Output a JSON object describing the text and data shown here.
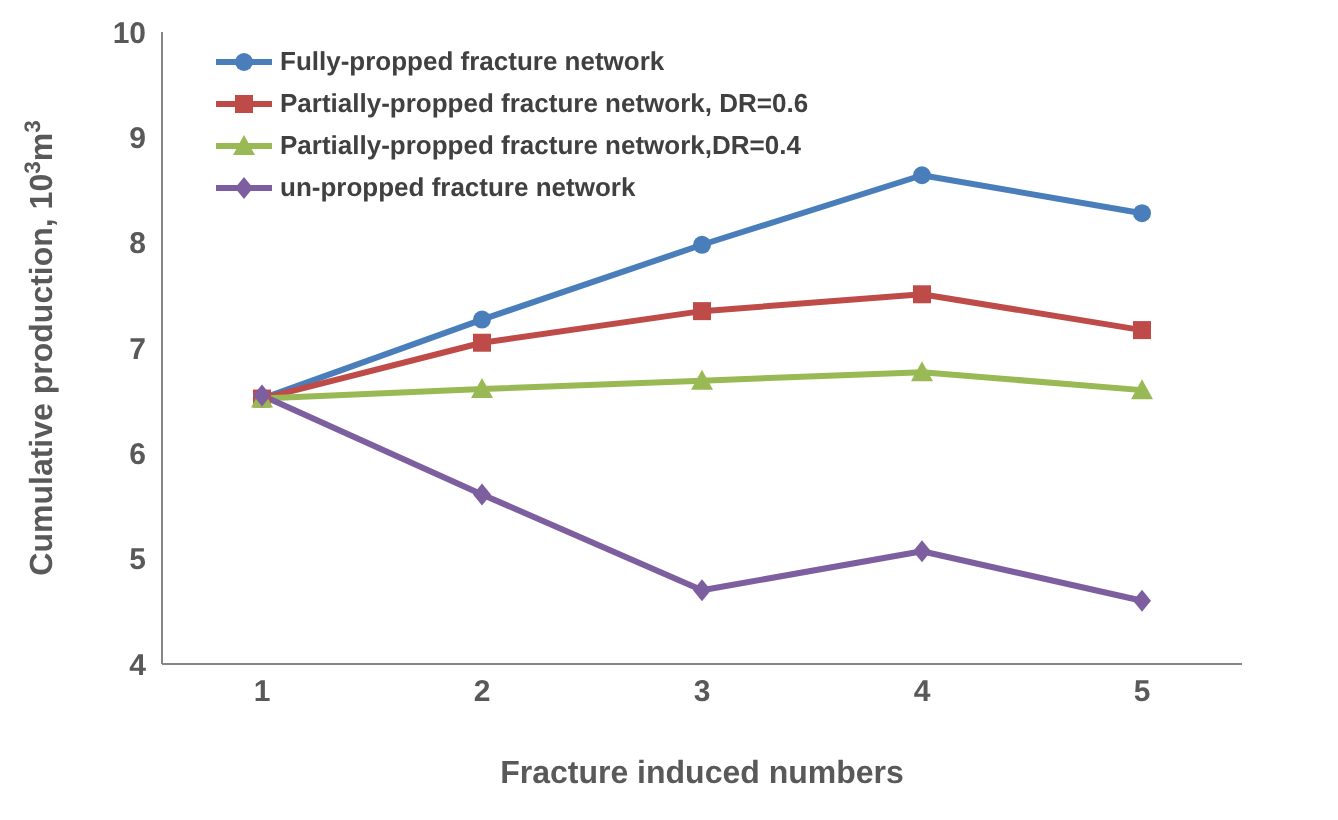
{
  "chart_data": {
    "type": "line",
    "xlabel": "Fracture induced numbers",
    "ylabel": "Cumulative production, 10$^{3}$m$^{3}$",
    "categories": [
      "1",
      "2",
      "3",
      "4",
      "5"
    ],
    "series": [
      {
        "name": "Fully-propped fracture network",
        "color": "#4a7ebb",
        "marker": "circle",
        "values": [
          6.52,
          7.27,
          7.98,
          8.64,
          8.28
        ]
      },
      {
        "name": "Partially-propped fracture network, DR=0.6",
        "color": "#be4b48",
        "marker": "square",
        "values": [
          6.52,
          7.05,
          7.35,
          7.51,
          7.17
        ]
      },
      {
        "name": "Partially-propped fracture network,DR=0.4",
        "color": "#98b954",
        "marker": "triangle",
        "values": [
          6.52,
          6.61,
          6.69,
          6.77,
          6.6
        ]
      },
      {
        "name": "un-propped fracture network",
        "color": "#7d5fa0",
        "marker": "diamond",
        "values": [
          6.55,
          5.61,
          4.7,
          5.07,
          4.6
        ]
      }
    ],
    "ylim": [
      4,
      10
    ],
    "yticks": [
      4,
      5,
      6,
      7,
      8,
      9,
      10
    ],
    "grid": false,
    "legend": "top left",
    "line_style": "solid"
  }
}
